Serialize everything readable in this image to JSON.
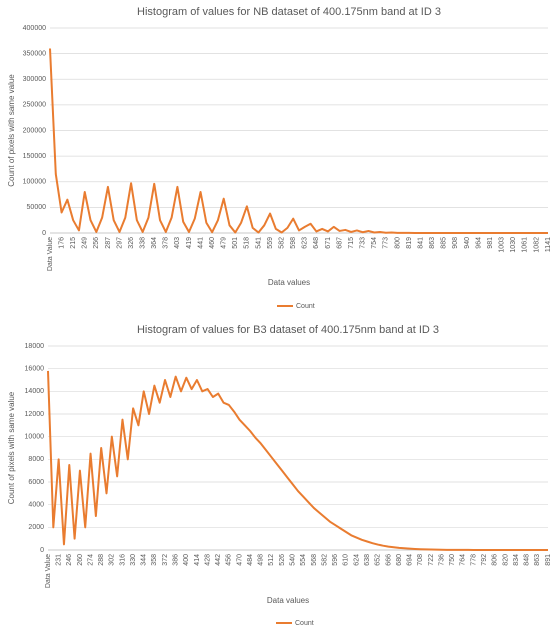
{
  "chart_data": [
    {
      "type": "line",
      "title": "Histogram of values for NB dataset of 400.175nm band at ID 3",
      "x_label": "Data values",
      "y_label": "Count of pixels with same value",
      "categories": [
        "Data Value",
        null,
        "176",
        null,
        "215",
        null,
        "249",
        null,
        "256",
        null,
        "287",
        null,
        "297",
        null,
        "326",
        null,
        "338",
        null,
        "364",
        null,
        "378",
        null,
        "403",
        null,
        "419",
        null,
        "441",
        null,
        "460",
        null,
        "479",
        null,
        "501",
        null,
        "518",
        null,
        "541",
        null,
        "559",
        null,
        "582",
        null,
        "598",
        null,
        "623",
        null,
        "648",
        null,
        "671",
        null,
        "687",
        null,
        "715",
        null,
        "733",
        null,
        "754",
        null,
        "773",
        null,
        "800",
        null,
        "819",
        null,
        "841",
        null,
        "863",
        null,
        "885",
        null,
        "908",
        null,
        "940",
        null,
        "964",
        null,
        "981",
        null,
        "1003",
        null,
        "1030",
        null,
        "1061",
        null,
        "1082",
        null,
        "1141"
      ],
      "series": [
        {
          "name": "Count",
          "color": "#e97c30",
          "values": [
            360000,
            115000,
            40000,
            65000,
            25000,
            5000,
            80000,
            25000,
            2000,
            30000,
            90000,
            25000,
            2000,
            30000,
            97000,
            25000,
            2000,
            30000,
            96000,
            25000,
            2000,
            30000,
            90000,
            22000,
            2000,
            28000,
            80000,
            20000,
            1500,
            25000,
            67000,
            15000,
            1000,
            20000,
            52000,
            10000,
            1000,
            15000,
            38000,
            8000,
            1000,
            10000,
            28000,
            5000,
            12000,
            18000,
            3000,
            8000,
            3000,
            12000,
            4000,
            6000,
            2000,
            5000,
            1500,
            4000,
            1000,
            2000,
            500,
            1000,
            300,
            200,
            150,
            100,
            80,
            60,
            50,
            40,
            30,
            20,
            20,
            10,
            10,
            10,
            10,
            5,
            5,
            5,
            0,
            0,
            0,
            0,
            0,
            0,
            0,
            0,
            0
          ]
        }
      ],
      "ylim": [
        0,
        400000
      ],
      "yticks": [
        0,
        50000,
        100000,
        150000,
        200000,
        250000,
        300000,
        350000,
        400000
      ],
      "grid": true,
      "legend": "bottom"
    },
    {
      "type": "line",
      "title": "Histogram of values for B3 dataset of 400.175nm band at ID 3",
      "x_label": "Data values",
      "y_label": "Count of pixels with same value",
      "categories": [
        "Data Value",
        null,
        "231",
        null,
        "246",
        null,
        "260",
        null,
        "274",
        null,
        "288",
        null,
        "302",
        null,
        "316",
        null,
        "330",
        null,
        "344",
        null,
        "358",
        null,
        "372",
        null,
        "386",
        null,
        "400",
        null,
        "414",
        null,
        "428",
        null,
        "442",
        null,
        "456",
        null,
        "470",
        null,
        "484",
        null,
        "498",
        null,
        "512",
        null,
        "526",
        null,
        "540",
        null,
        "554",
        null,
        "568",
        null,
        "582",
        null,
        "596",
        null,
        "610",
        null,
        "624",
        null,
        "638",
        null,
        "652",
        null,
        "666",
        null,
        "680",
        null,
        "694",
        null,
        "708",
        null,
        "722",
        null,
        "736",
        null,
        "750",
        null,
        "764",
        null,
        "778",
        null,
        "792",
        null,
        "806",
        null,
        "820",
        null,
        "834",
        null,
        "848",
        null,
        "863",
        null,
        "891"
      ],
      "series": [
        {
          "name": "Count",
          "color": "#e97c30",
          "values": [
            15800,
            2000,
            8000,
            500,
            7500,
            1000,
            7000,
            2000,
            8500,
            3000,
            9000,
            5000,
            10000,
            6500,
            11500,
            8000,
            12500,
            11000,
            14000,
            12000,
            14500,
            13000,
            15000,
            13500,
            15300,
            14000,
            15200,
            14200,
            15000,
            14000,
            14200,
            13500,
            13800,
            13000,
            12800,
            12200,
            11500,
            11000,
            10500,
            9900,
            9400,
            8800,
            8200,
            7600,
            7000,
            6400,
            5800,
            5200,
            4700,
            4200,
            3700,
            3300,
            2900,
            2500,
            2200,
            1900,
            1600,
            1300,
            1100,
            900,
            750,
            600,
            480,
            380,
            300,
            240,
            190,
            150,
            120,
            90,
            70,
            50,
            40,
            30,
            20,
            15,
            12,
            10,
            8,
            6,
            5,
            4,
            3,
            2,
            2,
            1,
            1,
            1,
            0,
            0,
            0,
            0,
            0,
            0,
            0
          ]
        }
      ],
      "ylim": [
        0,
        18000
      ],
      "yticks": [
        0,
        2000,
        4000,
        6000,
        8000,
        10000,
        12000,
        14000,
        16000,
        18000
      ],
      "grid": true,
      "legend": "bottom"
    }
  ]
}
